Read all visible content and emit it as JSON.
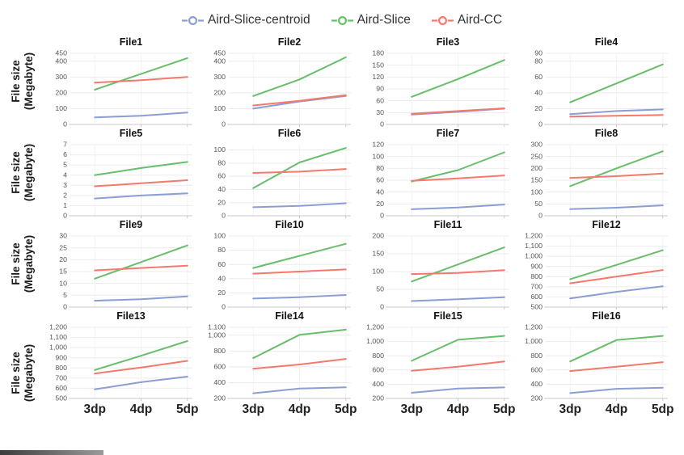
{
  "legend": {
    "items": [
      {
        "label": "Aird-Slice-centroid",
        "color": "#8C9DD4"
      },
      {
        "label": "Aird-Slice",
        "color": "#68BE6B"
      },
      {
        "label": "Aird-CC",
        "color": "#F3796C"
      }
    ]
  },
  "y_axis_label": {
    "lines": [
      "File size",
      "(Megabyte)"
    ]
  },
  "chart_data": {
    "type": "line",
    "x": [
      "3dp",
      "4dp",
      "5dp"
    ],
    "xlabel": "",
    "ylabel": "File size (Megabyte)",
    "grid": true,
    "legend_position": "top-center",
    "series_names": [
      "Aird-Slice-centroid",
      "Aird-Slice",
      "Aird-CC"
    ],
    "series_colors": [
      "#8C9DD4",
      "#68BE6B",
      "#F3796C"
    ],
    "charts": [
      {
        "title": "File1",
        "ylim": [
          0,
          450
        ],
        "yticks": [
          0,
          100,
          200,
          300,
          400,
          450
        ],
        "series": [
          {
            "name": "Aird-Slice-centroid",
            "values": [
              45,
              55,
              75
            ]
          },
          {
            "name": "Aird-Slice",
            "values": [
              220,
              320,
              420
            ]
          },
          {
            "name": "Aird-CC",
            "values": [
              265,
              280,
              300
            ]
          }
        ]
      },
      {
        "title": "File2",
        "ylim": [
          0,
          450
        ],
        "yticks": [
          0,
          100,
          200,
          300,
          400,
          450
        ],
        "series": [
          {
            "name": "Aird-Slice-centroid",
            "values": [
              100,
              145,
              180
            ]
          },
          {
            "name": "Aird-Slice",
            "values": [
              180,
              285,
              425
            ]
          },
          {
            "name": "Aird-CC",
            "values": [
              120,
              150,
              185
            ]
          }
        ]
      },
      {
        "title": "File3",
        "ylim": [
          0,
          180
        ],
        "yticks": [
          0,
          30,
          60,
          90,
          120,
          150,
          180
        ],
        "series": [
          {
            "name": "Aird-Slice-centroid",
            "values": [
              25,
              32,
              40
            ]
          },
          {
            "name": "Aird-Slice",
            "values": [
              70,
              115,
              163
            ]
          },
          {
            "name": "Aird-CC",
            "values": [
              27,
              34,
              41
            ]
          }
        ]
      },
      {
        "title": "File4",
        "ylim": [
          0,
          90
        ],
        "yticks": [
          0,
          20,
          40,
          60,
          80,
          90
        ],
        "series": [
          {
            "name": "Aird-Slice-centroid",
            "values": [
              13,
              17,
              19
            ]
          },
          {
            "name": "Aird-Slice",
            "values": [
              28,
              52,
              76
            ]
          },
          {
            "name": "Aird-CC",
            "values": [
              10,
              11,
              12
            ]
          }
        ]
      },
      {
        "title": "File5",
        "ylim": [
          0,
          7
        ],
        "yticks": [
          0,
          1,
          2,
          3,
          4,
          5,
          6,
          7
        ],
        "series": [
          {
            "name": "Aird-Slice-centroid",
            "values": [
              1.7,
              2.0,
              2.2
            ]
          },
          {
            "name": "Aird-Slice",
            "values": [
              4.0,
              4.7,
              5.3
            ]
          },
          {
            "name": "Aird-CC",
            "values": [
              2.9,
              3.2,
              3.5
            ]
          }
        ]
      },
      {
        "title": "File6",
        "ylim": [
          0,
          108
        ],
        "yticks": [
          0,
          20,
          40,
          60,
          80,
          100
        ],
        "series": [
          {
            "name": "Aird-Slice-centroid",
            "values": [
              13,
              15,
              19
            ]
          },
          {
            "name": "Aird-Slice",
            "values": [
              42,
              81,
              103
            ]
          },
          {
            "name": "Aird-CC",
            "values": [
              65,
              67,
              71
            ]
          }
        ]
      },
      {
        "title": "File7",
        "ylim": [
          0,
          120
        ],
        "yticks": [
          0,
          20,
          40,
          60,
          80,
          100,
          120
        ],
        "series": [
          {
            "name": "Aird-Slice-centroid",
            "values": [
              11,
              14,
              19
            ]
          },
          {
            "name": "Aird-Slice",
            "values": [
              58,
              77,
              107
            ]
          },
          {
            "name": "Aird-CC",
            "values": [
              59,
              63,
              68
            ]
          }
        ]
      },
      {
        "title": "File8",
        "ylim": [
          0,
          300
        ],
        "yticks": [
          0,
          50,
          100,
          150,
          200,
          250,
          300
        ],
        "series": [
          {
            "name": "Aird-Slice-centroid",
            "values": [
              28,
              34,
              44
            ]
          },
          {
            "name": "Aird-Slice",
            "values": [
              125,
              200,
              272
            ]
          },
          {
            "name": "Aird-CC",
            "values": [
              160,
              167,
              178
            ]
          }
        ]
      },
      {
        "title": "File9",
        "ylim": [
          0,
          30
        ],
        "yticks": [
          0,
          5,
          10,
          15,
          20,
          25,
          30
        ],
        "series": [
          {
            "name": "Aird-Slice-centroid",
            "values": [
              2.7,
              3.3,
              4.5
            ]
          },
          {
            "name": "Aird-Slice",
            "values": [
              12,
              19,
              26
            ]
          },
          {
            "name": "Aird-CC",
            "values": [
              15.5,
              16.5,
              17.5
            ]
          }
        ]
      },
      {
        "title": "File10",
        "ylim": [
          0,
          100
        ],
        "yticks": [
          0,
          20,
          40,
          60,
          80,
          100
        ],
        "series": [
          {
            "name": "Aird-Slice-centroid",
            "values": [
              12,
              14,
              17
            ]
          },
          {
            "name": "Aird-Slice",
            "values": [
              55,
              72,
              89
            ]
          },
          {
            "name": "Aird-CC",
            "values": [
              47,
              50,
              53
            ]
          }
        ]
      },
      {
        "title": "File11",
        "ylim": [
          0,
          200
        ],
        "yticks": [
          0,
          50,
          100,
          150,
          200
        ],
        "series": [
          {
            "name": "Aird-Slice-centroid",
            "values": [
              17,
              22,
              28
            ]
          },
          {
            "name": "Aird-Slice",
            "values": [
              72,
              120,
              168
            ]
          },
          {
            "name": "Aird-CC",
            "values": [
              93,
              96,
              104
            ]
          }
        ]
      },
      {
        "title": "File12",
        "ylim": [
          500,
          1200
        ],
        "yticks": [
          500,
          600,
          700,
          800,
          900,
          1000,
          1100,
          1200
        ],
        "series": [
          {
            "name": "Aird-Slice-centroid",
            "values": [
              585,
              650,
              705
            ]
          },
          {
            "name": "Aird-Slice",
            "values": [
              775,
              915,
              1060
            ]
          },
          {
            "name": "Aird-CC",
            "values": [
              735,
              800,
              865
            ]
          }
        ]
      },
      {
        "title": "File13",
        "ylim": [
          500,
          1200
        ],
        "yticks": [
          500,
          600,
          700,
          800,
          900,
          1000,
          1100,
          1200
        ],
        "series": [
          {
            "name": "Aird-Slice-centroid",
            "values": [
              590,
              660,
              715
            ]
          },
          {
            "name": "Aird-Slice",
            "values": [
              780,
              920,
              1065
            ]
          },
          {
            "name": "Aird-CC",
            "values": [
              745,
              805,
              870
            ]
          }
        ]
      },
      {
        "title": "File14",
        "ylim": [
          200,
          1100
        ],
        "yticks": [
          200,
          400,
          600,
          800,
          1000,
          1100
        ],
        "series": [
          {
            "name": "Aird-Slice-centroid",
            "values": [
              265,
              325,
              340
            ]
          },
          {
            "name": "Aird-Slice",
            "values": [
              710,
              1005,
              1070
            ]
          },
          {
            "name": "Aird-CC",
            "values": [
              575,
              630,
              700
            ]
          }
        ]
      },
      {
        "title": "File15",
        "ylim": [
          200,
          1200
        ],
        "yticks": [
          200,
          400,
          600,
          800,
          1000,
          1200
        ],
        "series": [
          {
            "name": "Aird-Slice-centroid",
            "values": [
              280,
              340,
              355
            ]
          },
          {
            "name": "Aird-Slice",
            "values": [
              730,
              1025,
              1080
            ]
          },
          {
            "name": "Aird-CC",
            "values": [
              590,
              645,
              720
            ]
          }
        ]
      },
      {
        "title": "File16",
        "ylim": [
          200,
          1200
        ],
        "yticks": [
          200,
          400,
          600,
          800,
          1000,
          1200
        ],
        "series": [
          {
            "name": "Aird-Slice-centroid",
            "values": [
              275,
              335,
              350
            ]
          },
          {
            "name": "Aird-Slice",
            "values": [
              720,
              1020,
              1080
            ]
          },
          {
            "name": "Aird-CC",
            "values": [
              585,
              645,
              710
            ]
          }
        ]
      }
    ]
  }
}
